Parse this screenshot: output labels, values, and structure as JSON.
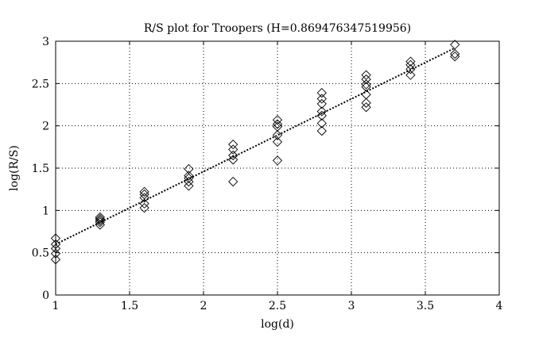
{
  "chart_data": {
    "type": "scatter",
    "title": "R/S plot for Troopers (H=0.869476347519956)",
    "xlabel": "log(d)",
    "ylabel": "log(R/S)",
    "xlim": [
      1,
      4
    ],
    "ylim": [
      0,
      3
    ],
    "xticks": [
      "1",
      "1.5",
      "2",
      "2.5",
      "3",
      "3.5",
      "4"
    ],
    "yticks": [
      "0",
      "0.5",
      "1",
      "1.5",
      "2",
      "2.5",
      "3"
    ],
    "grid": true,
    "legend": "none",
    "marker": "diamond",
    "points": [
      {
        "x": 1.0,
        "y": 0.67
      },
      {
        "x": 1.0,
        "y": 0.6
      },
      {
        "x": 1.0,
        "y": 0.55
      },
      {
        "x": 1.0,
        "y": 0.49
      },
      {
        "x": 1.0,
        "y": 0.42
      },
      {
        "x": 1.3,
        "y": 0.92
      },
      {
        "x": 1.3,
        "y": 0.9
      },
      {
        "x": 1.3,
        "y": 0.88
      },
      {
        "x": 1.3,
        "y": 0.86
      },
      {
        "x": 1.3,
        "y": 0.83
      },
      {
        "x": 1.6,
        "y": 1.22
      },
      {
        "x": 1.6,
        "y": 1.19
      },
      {
        "x": 1.6,
        "y": 1.15
      },
      {
        "x": 1.6,
        "y": 1.08
      },
      {
        "x": 1.6,
        "y": 1.03
      },
      {
        "x": 1.9,
        "y": 1.49
      },
      {
        "x": 1.9,
        "y": 1.41
      },
      {
        "x": 1.9,
        "y": 1.38
      },
      {
        "x": 1.9,
        "y": 1.34
      },
      {
        "x": 1.9,
        "y": 1.29
      },
      {
        "x": 2.2,
        "y": 1.78
      },
      {
        "x": 2.2,
        "y": 1.72
      },
      {
        "x": 2.2,
        "y": 1.65
      },
      {
        "x": 2.2,
        "y": 1.6
      },
      {
        "x": 2.2,
        "y": 1.34
      },
      {
        "x": 2.5,
        "y": 2.07
      },
      {
        "x": 2.5,
        "y": 2.02
      },
      {
        "x": 2.5,
        "y": 1.99
      },
      {
        "x": 2.5,
        "y": 1.89
      },
      {
        "x": 2.5,
        "y": 1.81
      },
      {
        "x": 2.5,
        "y": 1.59
      },
      {
        "x": 2.8,
        "y": 2.39
      },
      {
        "x": 2.8,
        "y": 2.32
      },
      {
        "x": 2.8,
        "y": 2.26
      },
      {
        "x": 2.8,
        "y": 2.17
      },
      {
        "x": 2.8,
        "y": 2.12
      },
      {
        "x": 2.8,
        "y": 2.03
      },
      {
        "x": 2.8,
        "y": 1.94
      },
      {
        "x": 3.1,
        "y": 2.6
      },
      {
        "x": 3.1,
        "y": 2.55
      },
      {
        "x": 3.1,
        "y": 2.49
      },
      {
        "x": 3.1,
        "y": 2.46
      },
      {
        "x": 3.1,
        "y": 2.37
      },
      {
        "x": 3.1,
        "y": 2.27
      },
      {
        "x": 3.1,
        "y": 2.22
      },
      {
        "x": 3.4,
        "y": 2.76
      },
      {
        "x": 3.4,
        "y": 2.72
      },
      {
        "x": 3.4,
        "y": 2.67
      },
      {
        "x": 3.4,
        "y": 2.6
      },
      {
        "x": 3.7,
        "y": 2.96
      },
      {
        "x": 3.7,
        "y": 2.85
      },
      {
        "x": 3.7,
        "y": 2.82
      }
    ],
    "fit_line": {
      "style": "dotted",
      "x": [
        1.0,
        3.7
      ],
      "y": [
        0.6,
        2.92
      ]
    }
  }
}
